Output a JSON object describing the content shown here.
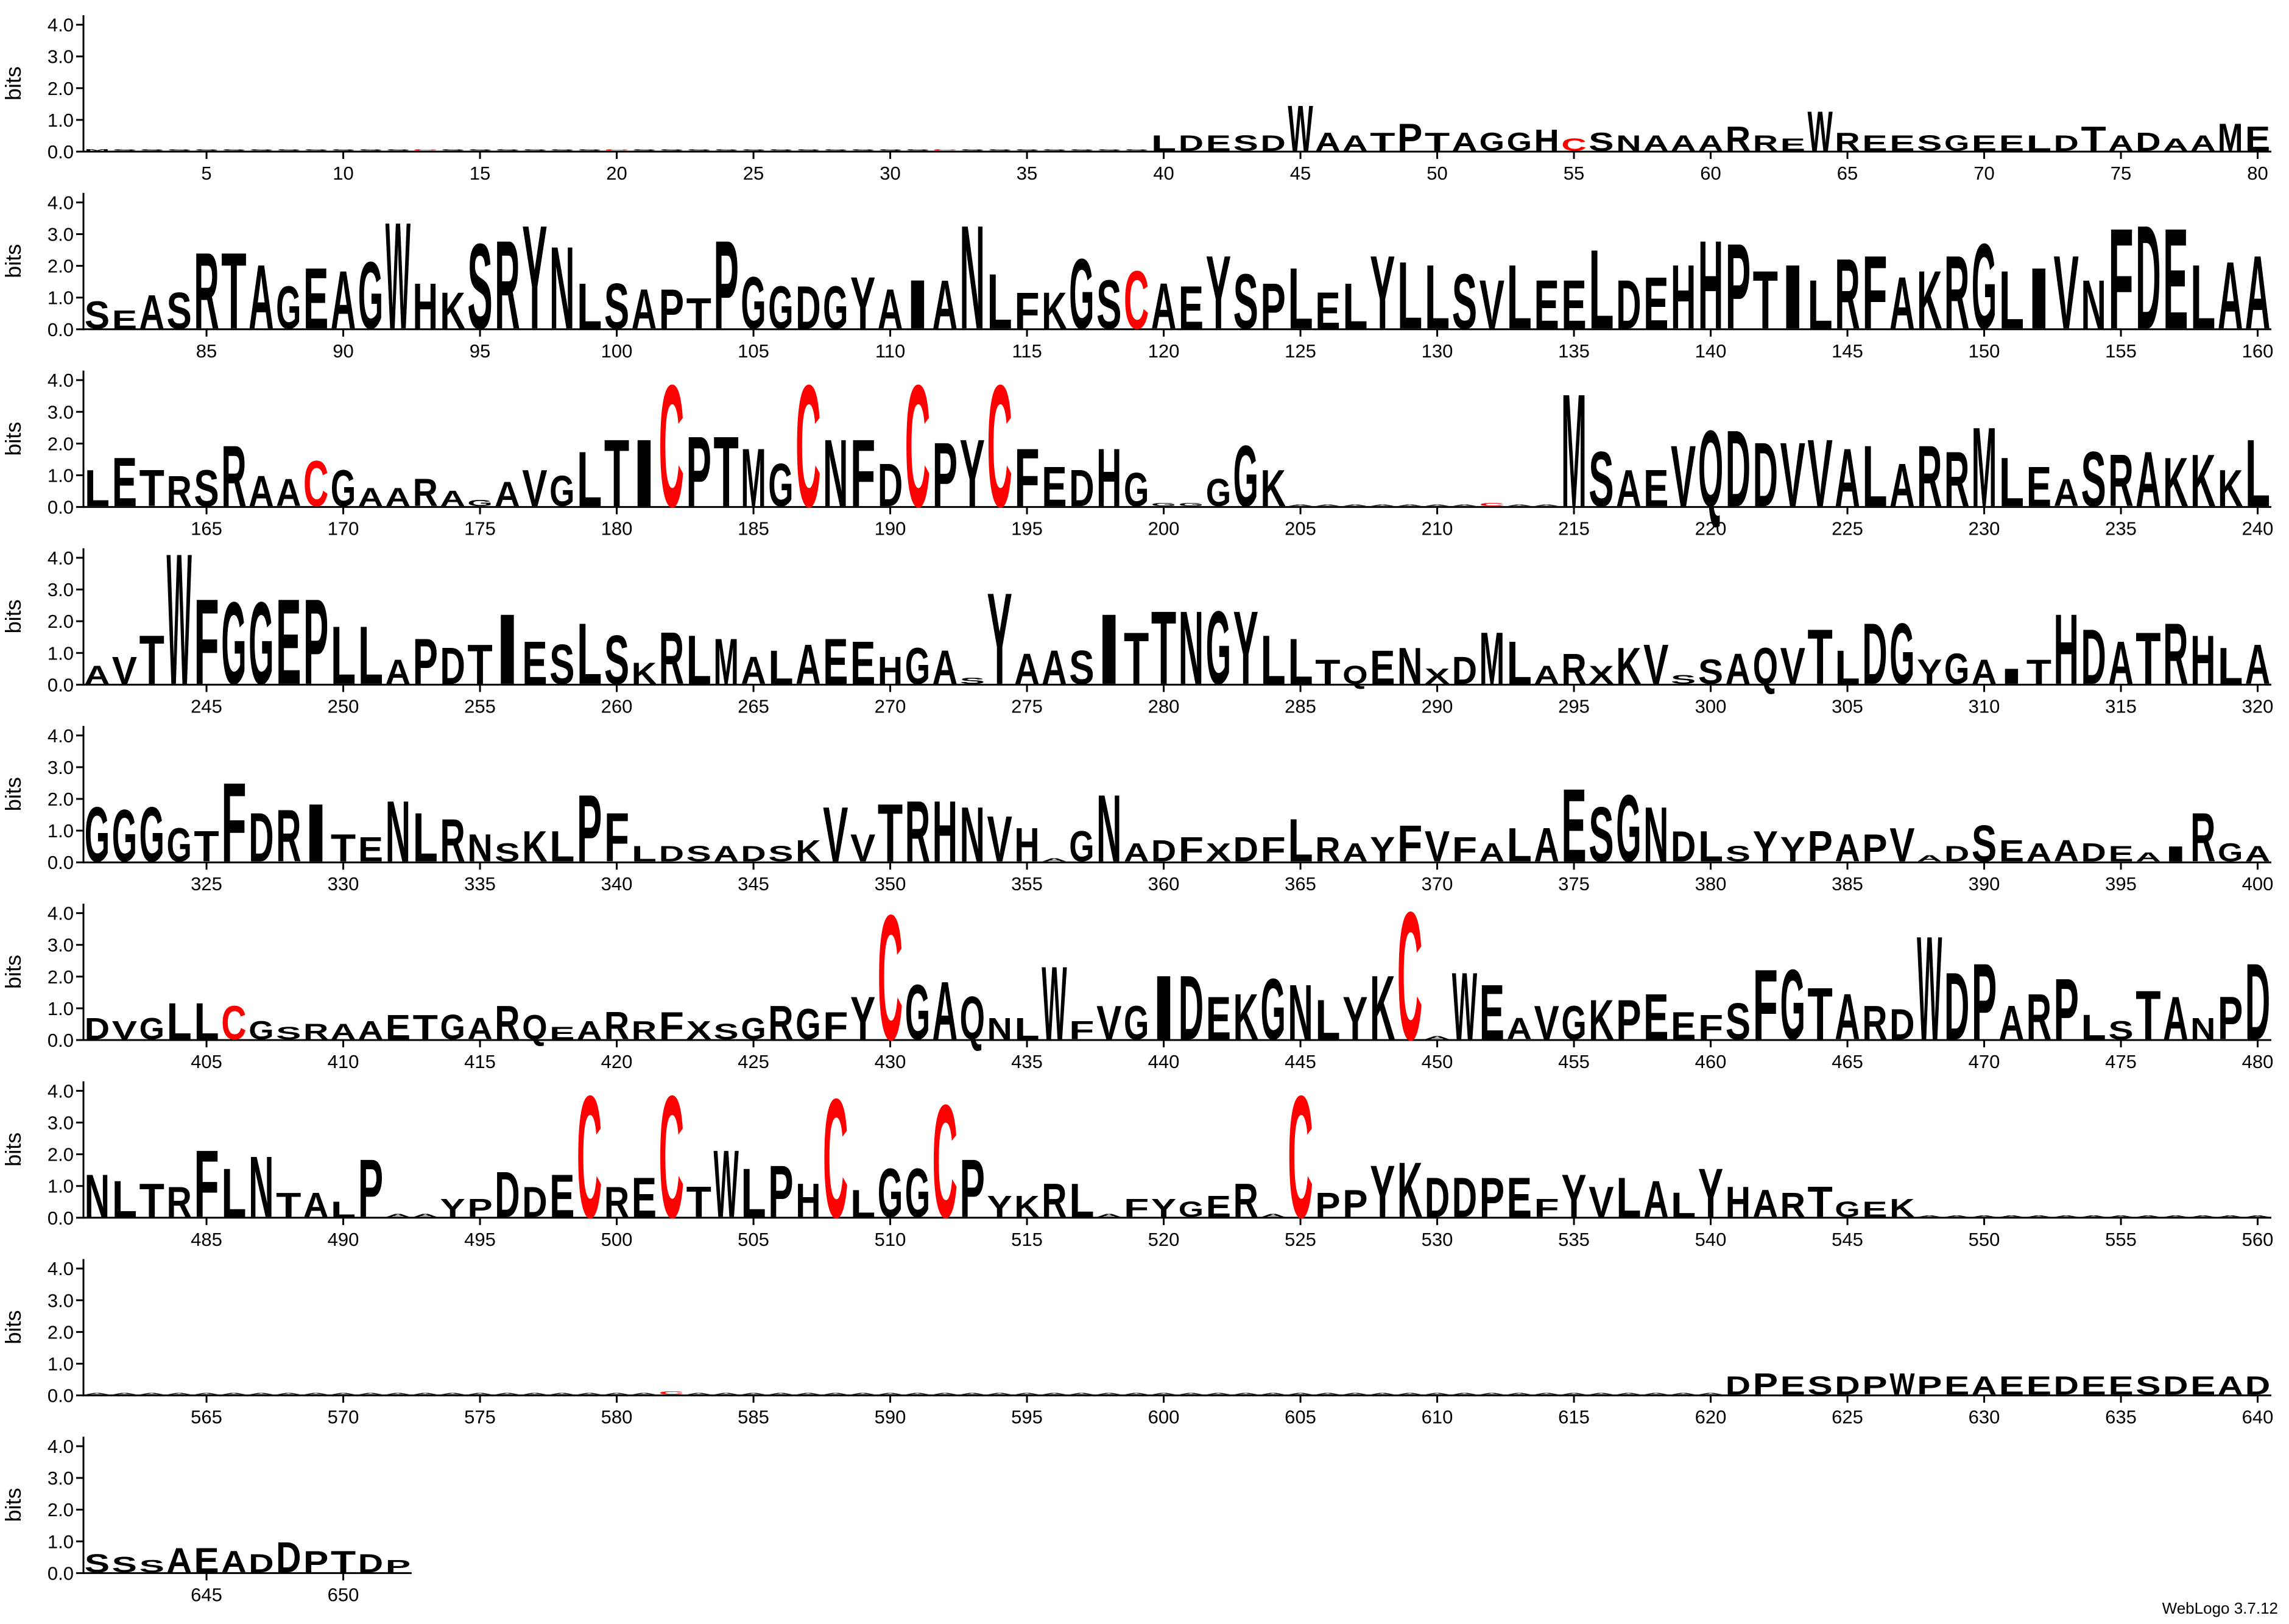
{
  "footer": "WebLogo 3.7.12",
  "style": {
    "color": "#000000",
    "highlight": {
      "letter": "C",
      "color": "#ff0000"
    }
  },
  "chart_data": [
    {
      "type": "logo",
      "ylabel": "bits",
      "xlim": [
        0.5,
        80.5
      ],
      "ylim": [
        0,
        4.3
      ],
      "yticks": [
        {
          "value": 0,
          "label": "0.0"
        },
        {
          "value": 1,
          "label": "1.0"
        },
        {
          "value": 2,
          "label": "2.0"
        },
        {
          "value": 3,
          "label": "3.0"
        },
        {
          "value": 4,
          "label": "4.0"
        }
      ],
      "xticks": [
        5,
        10,
        15,
        20,
        25,
        30,
        35,
        40,
        45,
        50,
        55,
        60,
        65,
        70,
        75,
        80
      ],
      "letters": "MSSSSSSSSSSSCSSSSSSCSSSSSSSSSSSCSSSSSSSLDESDWAATPTAGGHCSNAAARREWREESGEELDTADAAME",
      "values": [
        0.05,
        0.05,
        0.05,
        0.05,
        0.05,
        0.05,
        0.05,
        0.05,
        0.05,
        0.05,
        0.05,
        0.05,
        0.05,
        0.05,
        0.05,
        0.05,
        0.05,
        0.05,
        0.05,
        0.05,
        0.05,
        0.05,
        0.05,
        0.05,
        0.05,
        0.05,
        0.05,
        0.05,
        0.05,
        0.05,
        0.05,
        0.05,
        0.05,
        0.05,
        0.05,
        0.05,
        0.05,
        0.05,
        0.05,
        0.5,
        0.5,
        0.5,
        0.5,
        0.5,
        1.5,
        0.6,
        0.5,
        0.6,
        0.9,
        0.6,
        0.6,
        0.6,
        0.6,
        0.7,
        0.4,
        0.6,
        0.5,
        0.5,
        0.5,
        0.5,
        0.8,
        0.5,
        0.4,
        1.3,
        0.6,
        0.5,
        0.5,
        0.5,
        0.5,
        0.5,
        0.5,
        0.5,
        0.5,
        0.8,
        0.5,
        0.6,
        0.4,
        0.5,
        0.9,
        0.8
      ]
    },
    {
      "type": "logo",
      "ylabel": "bits",
      "xlim": [
        80.5,
        160.5
      ],
      "ylim": [
        0,
        4.3
      ],
      "yticks": [
        {
          "value": 0,
          "label": "0.0"
        },
        {
          "value": 1,
          "label": "1.0"
        },
        {
          "value": 2,
          "label": "2.0"
        },
        {
          "value": 3,
          "label": "3.0"
        },
        {
          "value": 4,
          "label": "4.0"
        }
      ],
      "xticks": [
        85,
        90,
        95,
        100,
        105,
        110,
        115,
        120,
        125,
        130,
        135,
        140,
        145,
        150,
        155,
        160
      ],
      "letters": "SEASRTAGEAGWHKSRYNLSAPTPGGDGYAIANLFKGSCAEYSPLELYLLSVLEELDEHHPTILRFAKRGLIVNFDELAA",
      "values": [
        0.9,
        0.6,
        1.1,
        1.2,
        2.5,
        2.5,
        2.1,
        1.4,
        2.0,
        1.9,
        2.2,
        3.5,
        1.5,
        1.2,
        2.8,
        2.9,
        3.4,
        2.7,
        1.5,
        1.5,
        1.3,
        1.3,
        1.0,
        2.9,
        1.7,
        1.4,
        1.4,
        1.4,
        1.7,
        1.3,
        1.6,
        1.6,
        3.4,
        1.8,
        1.2,
        1.2,
        2.3,
        1.6,
        1.9,
        1.5,
        1.4,
        2.4,
        1.8,
        1.5,
        2.0,
        1.2,
        1.5,
        2.4,
        2.2,
        2.1,
        1.8,
        1.6,
        2.1,
        1.6,
        1.6,
        2.6,
        1.6,
        1.7,
        2.1,
        2.9,
        2.8,
        1.9,
        2.1,
        1.6,
        2.3,
        2.4,
        1.7,
        1.9,
        2.4,
        2.8,
        1.9,
        2.0,
        2.4,
        1.6,
        3.3,
        3.4,
        3.3,
        2.1,
        2.2,
        2.4
      ]
    },
    {
      "type": "logo",
      "ylabel": "bits",
      "xlim": [
        160.5,
        240.5
      ],
      "ylim": [
        0,
        4.3
      ],
      "yticks": [
        {
          "value": 0,
          "label": "0.0"
        },
        {
          "value": 1,
          "label": "1.0"
        },
        {
          "value": 2,
          "label": "2.0"
        },
        {
          "value": 3,
          "label": "3.0"
        },
        {
          "value": 4,
          "label": "4.0"
        }
      ],
      "xticks": [
        165,
        170,
        175,
        180,
        185,
        190,
        195,
        200,
        205,
        210,
        215,
        220,
        225,
        230,
        235,
        240
      ],
      "letters": "LETRSRAACGAARAGAVGLTICPTMGCNFDCPYCFEDHGGGGGKAAAAAAACAAMSAEVQDDVVALARRMLEASRAKKKL",
      "values": [
        1.2,
        1.6,
        1.2,
        1.0,
        1.2,
        2.0,
        1.0,
        0.9,
        1.5,
        1.2,
        0.6,
        0.6,
        0.9,
        0.5,
        0.2,
        0.8,
        1.2,
        1.0,
        1.8,
        2.2,
        2.2,
        4.0,
        2.3,
        2.3,
        1.9,
        1.4,
        4.0,
        2.2,
        2.2,
        1.4,
        4.0,
        2.1,
        2.2,
        4.0,
        1.9,
        1.3,
        1.2,
        1.9,
        1.1,
        0.1,
        0.1,
        0.9,
        2.0,
        1.2,
        0.05,
        0.05,
        0.05,
        0.05,
        0.05,
        0.05,
        0.05,
        0.1,
        0.05,
        0.05,
        3.7,
        1.8,
        1.2,
        1.2,
        2.0,
        2.5,
        2.5,
        2.1,
        2.1,
        2.2,
        1.9,
        2.0,
        1.4,
        2.0,
        1.8,
        2.6,
        1.6,
        1.3,
        0.9,
        1.8,
        1.7,
        1.8,
        1.6,
        1.7,
        1.2,
        2.2
      ]
    },
    {
      "type": "logo",
      "ylabel": "bits",
      "xlim": [
        240.5,
        320.5
      ],
      "ylim": [
        0,
        4.3
      ],
      "yticks": [
        {
          "value": 0,
          "label": "0.0"
        },
        {
          "value": 1,
          "label": "1.0"
        },
        {
          "value": 2,
          "label": "2.0"
        },
        {
          "value": 3,
          "label": "3.0"
        },
        {
          "value": 4,
          "label": "4.0"
        }
      ],
      "xticks": [
        245,
        250,
        255,
        260,
        265,
        270,
        275,
        280,
        285,
        290,
        295,
        300,
        305,
        310,
        315,
        320
      ],
      "letters": "AVTWFGGEPLLAPDTIESLSKRLMALAEEHGASYAASITTNGYLLTQENXDMLARXKVSSAQVTLDGYGAITHDATRHLA",
      "values": [
        0.6,
        0.9,
        1.6,
        4.3,
        2.8,
        2.7,
        2.7,
        2.8,
        2.8,
        1.9,
        1.9,
        0.8,
        1.5,
        1.2,
        1.3,
        2.3,
        1.4,
        1.3,
        2.0,
        1.6,
        0.7,
        1.7,
        1.6,
        1.5,
        0.9,
        1.1,
        1.3,
        1.5,
        1.4,
        0.9,
        1.2,
        1.1,
        0.2,
        3.0,
        1.0,
        1.1,
        1.1,
        2.3,
        1.7,
        2.4,
        2.4,
        2.4,
        2.4,
        1.6,
        1.5,
        0.8,
        0.6,
        1.1,
        1.2,
        0.5,
        0.9,
        1.7,
        1.4,
        0.6,
        1.0,
        0.6,
        1.2,
        1.3,
        0.3,
        0.8,
        1.0,
        1.2,
        1.2,
        1.8,
        1.1,
        2.0,
        2.0,
        0.8,
        1.0,
        0.8,
        0.5,
        0.8,
        2.3,
        1.8,
        1.4,
        1.7,
        2.0,
        1.6,
        1.2,
        1.3
      ]
    },
    {
      "type": "logo",
      "ylabel": "bits",
      "xlim": [
        320.5,
        400.5
      ],
      "ylim": [
        0,
        4.3
      ],
      "yticks": [
        {
          "value": 0,
          "label": "0.0"
        },
        {
          "value": 1,
          "label": "1.0"
        },
        {
          "value": 2,
          "label": "2.0"
        },
        {
          "value": 3,
          "label": "3.0"
        },
        {
          "value": 4,
          "label": "4.0"
        }
      ],
      "xticks": [
        325,
        330,
        335,
        340,
        345,
        350,
        355,
        360,
        365,
        370,
        375,
        380,
        385,
        390,
        395,
        400
      ],
      "letters": "GGGGTFDRITENLRNSKLPFLDSADSKVVTRHNVHAGNADFXDFLRAYFVFALAESGNDLSYYPAPVADSEAADEAIRGA",
      "values": [
        1.8,
        1.7,
        1.8,
        1.1,
        1.0,
        2.6,
        1.6,
        1.7,
        1.9,
        0.9,
        0.8,
        2.0,
        1.6,
        1.4,
        0.9,
        0.6,
        1.0,
        1.0,
        2.2,
        1.6,
        0.5,
        0.5,
        0.5,
        0.5,
        0.5,
        0.5,
        0.7,
        1.8,
        0.9,
        1.9,
        2.0,
        2.0,
        1.8,
        1.5,
        1.1,
        0.1,
        1.0,
        2.2,
        0.6,
        0.7,
        0.8,
        0.6,
        0.8,
        0.8,
        1.4,
        0.8,
        0.6,
        0.8,
        1.2,
        1.0,
        0.8,
        0.6,
        1.1,
        1.1,
        2.4,
        1.8,
        2.2,
        1.8,
        1.0,
        1.0,
        0.5,
        1.0,
        0.8,
        1.0,
        0.9,
        0.9,
        1.1,
        0.2,
        0.5,
        1.2,
        0.7,
        0.6,
        0.7,
        0.6,
        0.5,
        0.3,
        0.5,
        1.6,
        0.6,
        0.5
      ]
    },
    {
      "type": "logo",
      "ylabel": "bits",
      "xlim": [
        400.5,
        480.5
      ],
      "ylim": [
        0,
        4.3
      ],
      "yticks": [
        {
          "value": 0,
          "label": "0.0"
        },
        {
          "value": 1,
          "label": "1.0"
        },
        {
          "value": 2,
          "label": "2.0"
        },
        {
          "value": 3,
          "label": "3.0"
        },
        {
          "value": 4,
          "label": "4.0"
        }
      ],
      "xticks": [
        405,
        410,
        415,
        420,
        425,
        430,
        435,
        440,
        445,
        450,
        455,
        460,
        465,
        470,
        475,
        480
      ],
      "letters": "DVGLLCGSRAAETGARQEARRFXSGRGFYCGAQNLWFVGIDEKGNLYKCAWEAVGKPEEFSFGTARDWDPARPLSTANPD",
      "values": [
        0.7,
        0.6,
        0.7,
        1.2,
        1.2,
        1.1,
        0.6,
        0.4,
        0.5,
        0.5,
        0.6,
        0.8,
        0.8,
        0.8,
        0.7,
        1.1,
        0.8,
        0.4,
        0.6,
        0.9,
        0.6,
        0.9,
        0.6,
        0.5,
        0.7,
        1.1,
        1.0,
        0.9,
        1.4,
        4.1,
        1.8,
        1.9,
        1.4,
        0.7,
        0.7,
        2.4,
        0.6,
        1.1,
        1.1,
        2.1,
        2.1,
        1.4,
        1.5,
        2.0,
        1.8,
        1.3,
        1.4,
        2.1,
        4.2,
        0.1,
        2.2,
        1.8,
        0.7,
        1.1,
        1.1,
        1.3,
        1.3,
        1.5,
        0.9,
        0.8,
        1.2,
        2.3,
        2.3,
        1.7,
        1.5,
        1.1,
        1.0,
        3.4,
        2.2,
        2.5,
        1.1,
        1.5,
        2.0,
        0.8,
        0.6,
        1.6,
        1.4,
        0.7,
        1.4,
        2.5
      ]
    },
    {
      "type": "logo",
      "ylabel": "bits",
      "xlim": [
        480.5,
        560.5
      ],
      "ylim": [
        0,
        4.3
      ],
      "yticks": [
        {
          "value": 0,
          "label": "0.0"
        },
        {
          "value": 1,
          "label": "1.0"
        },
        {
          "value": 2,
          "label": "2.0"
        },
        {
          "value": 3,
          "label": "3.0"
        },
        {
          "value": 4,
          "label": "4.0"
        }
      ],
      "xticks": [
        485,
        490,
        495,
        500,
        505,
        510,
        515,
        520,
        525,
        530,
        535,
        540,
        545,
        550,
        555,
        560
      ],
      "letters": "NLTRFLNTALPAAYPDDECRECTWLPHCLGGCPYKRLAFYGERACPPYKDDPEFYVLALYHARTGEKAAAAAAAAAAAAA",
      "values": [
        1.4,
        1.2,
        1.1,
        1.0,
        2.2,
        1.6,
        2.0,
        0.8,
        0.8,
        0.5,
        1.9,
        0.1,
        0.1,
        0.6,
        0.6,
        1.5,
        1.0,
        1.4,
        4.0,
        1.0,
        1.3,
        4.0,
        1.0,
        2.2,
        1.6,
        1.7,
        1.1,
        3.9,
        0.9,
        1.6,
        1.6,
        3.7,
        1.9,
        0.7,
        0.7,
        1.1,
        1.1,
        0.1,
        0.6,
        0.6,
        0.5,
        0.7,
        1.1,
        0.1,
        4.0,
        0.8,
        0.9,
        1.7,
        1.8,
        1.3,
        1.3,
        1.3,
        1.3,
        0.6,
        1.4,
        1.0,
        1.3,
        1.2,
        0.8,
        1.6,
        1.0,
        0.9,
        0.8,
        1.0,
        0.5,
        0.5,
        0.6,
        0.05,
        0.05,
        0.05,
        0.05,
        0.05,
        0.05,
        0.05,
        0.05,
        0.05,
        0.05,
        0.05,
        0.05,
        0.05
      ]
    },
    {
      "type": "logo",
      "ylabel": "bits",
      "xlim": [
        560.5,
        640.5
      ],
      "ylim": [
        0,
        4.3
      ],
      "yticks": [
        {
          "value": 0,
          "label": "0.0"
        },
        {
          "value": 1,
          "label": "1.0"
        },
        {
          "value": 2,
          "label": "2.0"
        },
        {
          "value": 3,
          "label": "3.0"
        },
        {
          "value": 4,
          "label": "4.0"
        }
      ],
      "xticks": [
        565,
        570,
        575,
        580,
        585,
        590,
        595,
        600,
        605,
        610,
        615,
        620,
        625,
        630,
        635,
        640
      ],
      "letters": "AAAAAAAAAAAAAAAAAAAAACAAAAAAAAAAAAAAAAAAAAAAAAAAAAAAAAAAAAAADPESDPWPEAEEDEESDEAD",
      "values": [
        0.05,
        0.05,
        0.05,
        0.05,
        0.05,
        0.05,
        0.05,
        0.05,
        0.05,
        0.05,
        0.05,
        0.05,
        0.05,
        0.05,
        0.05,
        0.05,
        0.05,
        0.05,
        0.05,
        0.05,
        0.05,
        0.1,
        0.05,
        0.05,
        0.05,
        0.05,
        0.05,
        0.05,
        0.05,
        0.05,
        0.05,
        0.05,
        0.05,
        0.05,
        0.05,
        0.05,
        0.05,
        0.05,
        0.05,
        0.05,
        0.05,
        0.05,
        0.05,
        0.05,
        0.05,
        0.05,
        0.05,
        0.05,
        0.05,
        0.05,
        0.05,
        0.05,
        0.05,
        0.05,
        0.05,
        0.05,
        0.05,
        0.05,
        0.05,
        0.05,
        0.6,
        0.7,
        0.6,
        0.6,
        0.6,
        0.6,
        0.7,
        0.6,
        0.6,
        0.6,
        0.6,
        0.6,
        0.6,
        0.6,
        0.6,
        0.6,
        0.6,
        0.6,
        0.6,
        0.6
      ]
    },
    {
      "type": "logo",
      "ylabel": "bits",
      "xlim": [
        640.5,
        652.5
      ],
      "ylim": [
        0,
        4.3
      ],
      "yticks": [
        {
          "value": 0,
          "label": "0.0"
        },
        {
          "value": 1,
          "label": "1.0"
        },
        {
          "value": 2,
          "label": "2.0"
        },
        {
          "value": 3,
          "label": "3.0"
        },
        {
          "value": 4,
          "label": "4.0"
        }
      ],
      "xticks": [
        645,
        650
      ],
      "letters": "SSSAEADDPTDP",
      "values": [
        0.6,
        0.5,
        0.4,
        0.8,
        0.8,
        0.7,
        0.6,
        1.0,
        0.7,
        0.7,
        0.6,
        0.4
      ]
    }
  ]
}
